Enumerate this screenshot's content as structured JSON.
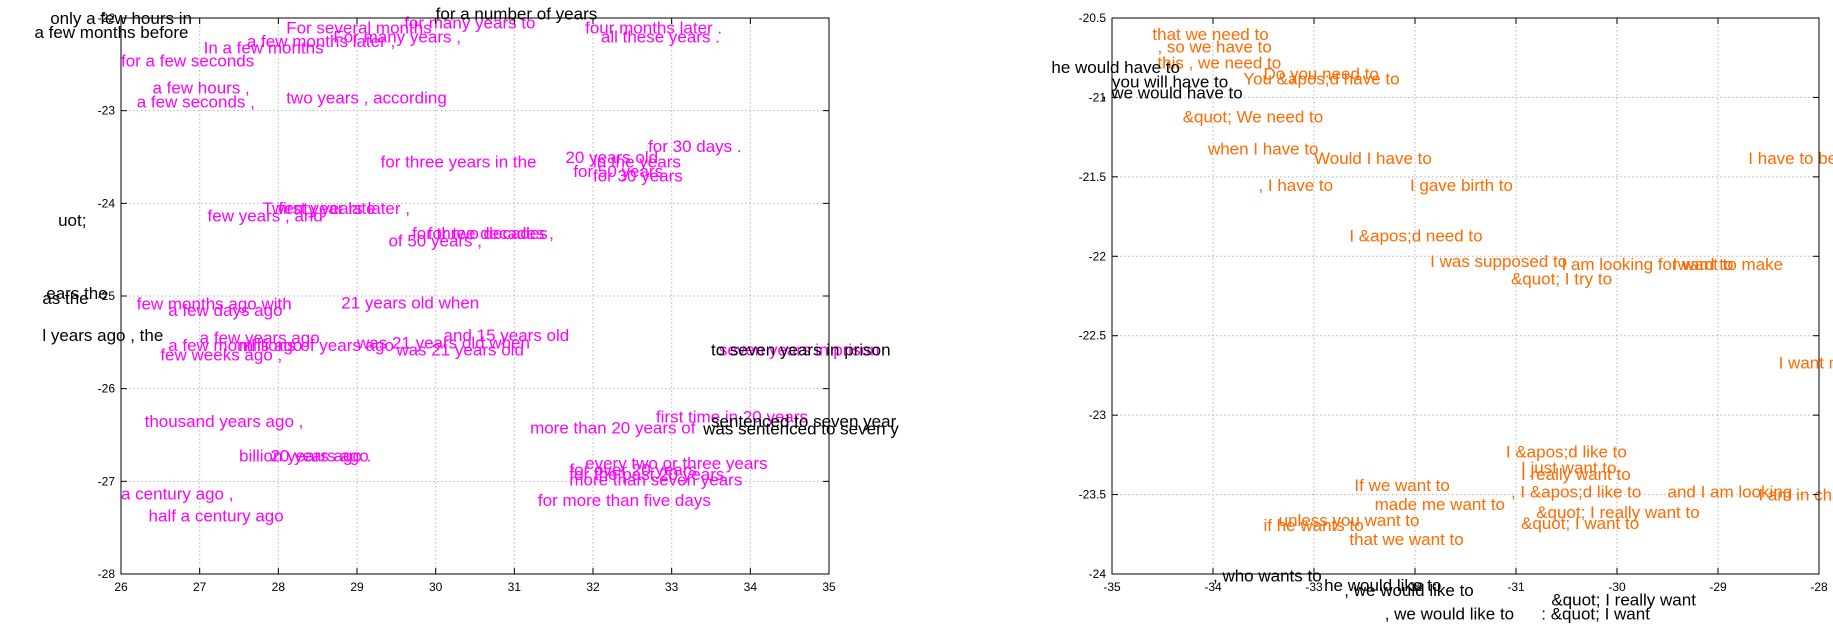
{
  "chart_data": [
    {
      "type": "scatter",
      "xlim": [
        26,
        35
      ],
      "ylim": [
        -28,
        -22
      ],
      "y_inverted": true,
      "grid": true,
      "x_ticks": [
        26,
        27,
        28,
        29,
        30,
        31,
        32,
        33,
        34,
        35
      ],
      "y_ticks": [
        -22,
        -23,
        -24,
        -25,
        -26,
        -27,
        -28
      ],
      "colors": {
        "highlight": "#ff00ff",
        "neighbor": "#000000"
      },
      "labels": [
        {
          "text": "only a few hours in",
          "x": 25.1,
          "y": -22.0,
          "color": "#000000"
        },
        {
          "text": "a few months before",
          "x": 24.9,
          "y": -22.15,
          "color": "#000000"
        },
        {
          "text": "for a number of years",
          "x": 30.0,
          "y": -21.95,
          "color": "#000000"
        },
        {
          "text": "for many years to",
          "x": 29.6,
          "y": -22.05,
          "color": "#ff00ff"
        },
        {
          "text": "For several months",
          "x": 28.1,
          "y": -22.1,
          "color": "#ff00ff"
        },
        {
          "text": "For many years ,",
          "x": 28.7,
          "y": -22.2,
          "color": "#ff00ff"
        },
        {
          "text": "four months later .",
          "x": 31.9,
          "y": -22.1,
          "color": "#ff00ff"
        },
        {
          "text": "all these years .",
          "x": 32.1,
          "y": -22.2,
          "color": "#ff00ff"
        },
        {
          "text": "a few months later ,",
          "x": 27.6,
          "y": -22.25,
          "color": "#ff00ff"
        },
        {
          "text": "In a few months",
          "x": 27.05,
          "y": -22.32,
          "color": "#ff00ff"
        },
        {
          "text": "for a few seconds",
          "x": 26.0,
          "y": -22.46,
          "color": "#ff00ff"
        },
        {
          "text": "a few hours ,",
          "x": 26.4,
          "y": -22.75,
          "color": "#ff00ff"
        },
        {
          "text": "two years , according",
          "x": 28.1,
          "y": -22.86,
          "color": "#ff00ff"
        },
        {
          "text": "a few seconds ,",
          "x": 26.2,
          "y": -22.9,
          "color": "#ff00ff"
        },
        {
          "text": "for 30 days .",
          "x": 32.7,
          "y": -23.38,
          "color": "#ff00ff"
        },
        {
          "text": "20 years old",
          "x": 31.65,
          "y": -23.5,
          "color": "#ff00ff"
        },
        {
          "text": "for three years in the",
          "x": 29.3,
          "y": -23.55,
          "color": "#ff00ff"
        },
        {
          "text": "in the years",
          "x": 32.0,
          "y": -23.55,
          "color": "#ff00ff"
        },
        {
          "text": "for 50 years .",
          "x": 31.75,
          "y": -23.65,
          "color": "#ff00ff"
        },
        {
          "text": "for 30 years",
          "x": 32.0,
          "y": -23.7,
          "color": "#ff00ff"
        },
        {
          "text": "Twenty years later ,",
          "x": 27.8,
          "y": -24.05,
          "color": "#ff00ff"
        },
        {
          "text": "first year late",
          "x": 28.0,
          "y": -24.05,
          "color": "#ff00ff"
        },
        {
          "text": "few years , and",
          "x": 27.1,
          "y": -24.13,
          "color": "#ff00ff"
        },
        {
          "text": "uot;",
          "x": 25.2,
          "y": -24.18,
          "color": "#000000"
        },
        {
          "text": "for three decades ,",
          "x": 29.7,
          "y": -24.32,
          "color": "#ff00ff"
        },
        {
          "text": "for two decades",
          "x": 29.9,
          "y": -24.32,
          "color": "#ff00ff"
        },
        {
          "text": "of 50 years ,",
          "x": 29.4,
          "y": -24.4,
          "color": "#ff00ff"
        },
        {
          "text": "ears the",
          "x": 25.05,
          "y": -24.97,
          "color": "#000000"
        },
        {
          "text": "as the",
          "x": 25.0,
          "y": -25.02,
          "color": "#000000"
        },
        {
          "text": "few months ago with",
          "x": 26.2,
          "y": -25.08,
          "color": "#ff00ff"
        },
        {
          "text": "21 years old when",
          "x": 28.8,
          "y": -25.07,
          "color": "#ff00ff"
        },
        {
          "text": "a few days ago",
          "x": 26.6,
          "y": -25.15,
          "color": "#ff00ff"
        },
        {
          "text": "and 15 years old",
          "x": 30.1,
          "y": -25.42,
          "color": "#ff00ff"
        },
        {
          "text": "l years ago , the",
          "x": 25.0,
          "y": -25.42,
          "color": "#000000"
        },
        {
          "text": "a few years ago",
          "x": 27.0,
          "y": -25.45,
          "color": "#ff00ff"
        },
        {
          "text": "was 21 years old when",
          "x": 29.0,
          "y": -25.5,
          "color": "#ff00ff"
        },
        {
          "text": "millions of years ago",
          "x": 27.5,
          "y": -25.53,
          "color": "#ff00ff"
        },
        {
          "text": "a few months ago",
          "x": 26.6,
          "y": -25.53,
          "color": "#ff00ff"
        },
        {
          "text": "few weeks ago ,",
          "x": 26.5,
          "y": -25.63,
          "color": "#ff00ff"
        },
        {
          "text": "was 21 years old",
          "x": 29.5,
          "y": -25.58,
          "color": "#ff00ff"
        },
        {
          "text": "seven years in prison",
          "x": 33.6,
          "y": -25.58,
          "color": "#ff00ff"
        },
        {
          "text": "to seven years in prison",
          "x": 33.5,
          "y": -25.58,
          "color": "#000000"
        },
        {
          "text": "first time in 20 years",
          "x": 32.8,
          "y": -26.3,
          "color": "#ff00ff"
        },
        {
          "text": "thousand years ago ,",
          "x": 26.3,
          "y": -26.35,
          "color": "#ff00ff"
        },
        {
          "text": "sentenced to seven year",
          "x": 33.5,
          "y": -26.35,
          "color": "#000000"
        },
        {
          "text": "more than 20 years of",
          "x": 31.2,
          "y": -26.42,
          "color": "#ff00ff"
        },
        {
          "text": "was sentenced to seven y",
          "x": 33.4,
          "y": -26.43,
          "color": "#000000"
        },
        {
          "text": "billion years ago .",
          "x": 27.5,
          "y": -26.72,
          "color": "#ff00ff"
        },
        {
          "text": "20 years ago",
          "x": 27.9,
          "y": -26.72,
          "color": "#ff00ff"
        },
        {
          "text": "every two or three years",
          "x": 31.9,
          "y": -26.8,
          "color": "#ff00ff"
        },
        {
          "text": "for over 20 years",
          "x": 31.7,
          "y": -26.87,
          "color": "#ff00ff"
        },
        {
          "text": "for the past 20 years",
          "x": 31.7,
          "y": -26.92,
          "color": "#ff00ff"
        },
        {
          "text": "more than seven years",
          "x": 31.7,
          "y": -26.98,
          "color": "#ff00ff"
        },
        {
          "text": "a century ago ,",
          "x": 26.0,
          "y": -27.13,
          "color": "#ff00ff"
        },
        {
          "text": "for more than five days",
          "x": 31.3,
          "y": -27.2,
          "color": "#ff00ff"
        },
        {
          "text": "half a century ago",
          "x": 26.35,
          "y": -27.37,
          "color": "#ff00ff"
        }
      ]
    },
    {
      "type": "scatter",
      "xlim": [
        -35,
        -28
      ],
      "ylim": [
        -24,
        -20.5
      ],
      "y_inverted": true,
      "grid": true,
      "x_ticks": [
        -35,
        -34,
        -33,
        -32,
        -31,
        -30,
        -29,
        -28
      ],
      "y_ticks": [
        -20.5,
        -21,
        -21.5,
        -22,
        -22.5,
        -23,
        -23.5,
        -24
      ],
      "colors": {
        "highlight": "#ff6a00",
        "neighbor": "#000000"
      },
      "labels": [
        {
          "text": "that we need to",
          "x": -34.6,
          "y": -20.6,
          "color": "#ff6a00"
        },
        {
          "text": ", so we have to",
          "x": -34.55,
          "y": -20.68,
          "color": "#ff6a00"
        },
        {
          "text": "this , we need to",
          "x": -34.55,
          "y": -20.78,
          "color": "#ff6a00"
        },
        {
          "text": "he would have to",
          "x": -35.6,
          "y": -20.81,
          "color": "#000000"
        },
        {
          "text": "Do you need to",
          "x": -33.5,
          "y": -20.85,
          "color": "#ff6a00"
        },
        {
          "text": "You &apos;d have to",
          "x": -33.7,
          "y": -20.88,
          "color": "#ff6a00"
        },
        {
          "text": "you will have to",
          "x": -35.0,
          "y": -20.9,
          "color": "#000000"
        },
        {
          "text": ", we would have to",
          "x": -35.1,
          "y": -20.97,
          "color": "#000000"
        },
        {
          "text": "&quot; We need to",
          "x": -34.3,
          "y": -21.12,
          "color": "#ff6a00"
        },
        {
          "text": "when I have to",
          "x": -34.05,
          "y": -21.32,
          "color": "#ff6a00"
        },
        {
          "text": "I have to be",
          "x": -28.7,
          "y": -21.38,
          "color": "#ff6a00"
        },
        {
          "text": "Would I have to",
          "x": -33.0,
          "y": -21.38,
          "color": "#ff6a00"
        },
        {
          "text": ", I have to",
          "x": -33.55,
          "y": -21.55,
          "color": "#ff6a00"
        },
        {
          "text": "I gave birth to",
          "x": -32.05,
          "y": -21.55,
          "color": "#ff6a00"
        },
        {
          "text": "I &apos;d need to",
          "x": -32.65,
          "y": -21.87,
          "color": "#ff6a00"
        },
        {
          "text": "I was supposed to",
          "x": -31.85,
          "y": -22.03,
          "color": "#ff6a00"
        },
        {
          "text": "I am looking forward to",
          "x": -30.55,
          "y": -22.05,
          "color": "#ff6a00"
        },
        {
          "text": "I want to make",
          "x": -29.45,
          "y": -22.05,
          "color": "#ff6a00"
        },
        {
          "text": "&quot; I try to",
          "x": -31.05,
          "y": -22.14,
          "color": "#ff6a00"
        },
        {
          "text": "I want most is",
          "x": -28.4,
          "y": -22.67,
          "color": "#ff6a00"
        },
        {
          "text": "I &apos;d like to",
          "x": -31.1,
          "y": -23.23,
          "color": "#ff6a00"
        },
        {
          "text": "I just want to",
          "x": -30.95,
          "y": -23.33,
          "color": "#ff6a00"
        },
        {
          "text": "I really want to",
          "x": -30.95,
          "y": -23.37,
          "color": "#ff6a00"
        },
        {
          "text": "If we want to",
          "x": -32.6,
          "y": -23.44,
          "color": "#ff6a00"
        },
        {
          "text": "and I am looking",
          "x": -29.5,
          "y": -23.48,
          "color": "#ff6a00"
        },
        {
          "text": "I am in charge",
          "x": -28.6,
          "y": -23.5,
          "color": "#ff6a00"
        },
        {
          "text": ", I &apos;d like to",
          "x": -31.05,
          "y": -23.48,
          "color": "#ff6a00"
        },
        {
          "text": "made me want to",
          "x": -32.4,
          "y": -23.56,
          "color": "#ff6a00"
        },
        {
          "text": "&quot; I really want to",
          "x": -30.8,
          "y": -23.61,
          "color": "#ff6a00"
        },
        {
          "text": "unless you want to",
          "x": -33.35,
          "y": -23.66,
          "color": "#ff6a00"
        },
        {
          "text": "&quot; I want to",
          "x": -30.95,
          "y": -23.68,
          "color": "#ff6a00"
        },
        {
          "text": "if he wants to",
          "x": -33.5,
          "y": -23.69,
          "color": "#ff6a00"
        },
        {
          "text": "that we want to",
          "x": -32.65,
          "y": -23.78,
          "color": "#ff6a00"
        },
        {
          "text": ", who wants to",
          "x": -34.0,
          "y": -24.01,
          "color": "#000000"
        },
        {
          "text": "he would like to",
          "x": -32.9,
          "y": -24.07,
          "color": "#000000"
        },
        {
          "text": ", we would like to",
          "x": -32.7,
          "y": -24.1,
          "color": "#000000"
        },
        {
          "text": "&quot; I really want",
          "x": -30.65,
          "y": -24.16,
          "color": "#000000"
        },
        {
          "text": ", we would like to",
          "x": -32.3,
          "y": -24.25,
          "color": "#000000"
        },
        {
          "text": ": &quot; I want",
          "x": -30.75,
          "y": -24.25,
          "color": "#000000"
        }
      ]
    }
  ]
}
